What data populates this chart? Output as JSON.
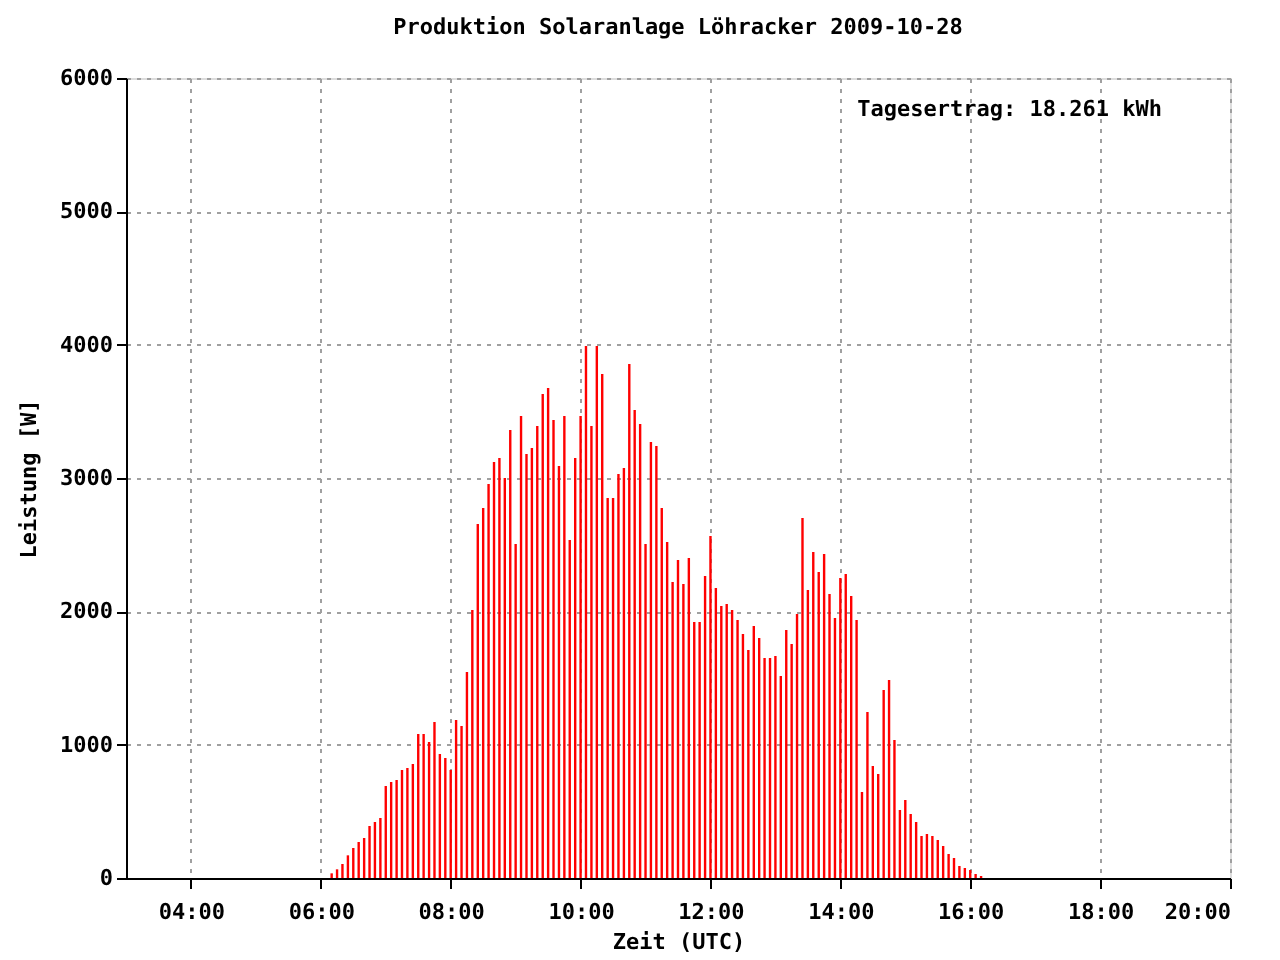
{
  "chart_data": {
    "type": "bar",
    "title": "Produktion Solaranlage Löhracker 2009-10-28",
    "xlabel": "Zeit (UTC)",
    "ylabel": "Leistung [W]",
    "annotations": [
      "Tagesertrag: 18.261 kWh"
    ],
    "x": [
      6.167,
      6.25,
      6.333,
      6.417,
      6.5,
      6.583,
      6.667,
      6.75,
      6.833,
      6.917,
      7,
      7.083,
      7.167,
      7.25,
      7.333,
      7.417,
      7.5,
      7.583,
      7.667,
      7.75,
      7.833,
      7.917,
      8,
      8.083,
      8.167,
      8.25,
      8.333,
      8.417,
      8.5,
      8.583,
      8.667,
      8.75,
      8.833,
      8.917,
      9,
      9.083,
      9.167,
      9.25,
      9.333,
      9.417,
      9.5,
      9.583,
      9.667,
      9.75,
      9.833,
      9.917,
      10,
      10.083,
      10.167,
      10.25,
      10.333,
      10.417,
      10.5,
      10.583,
      10.667,
      10.75,
      10.833,
      10.917,
      11,
      11.083,
      11.167,
      11.25,
      11.333,
      11.417,
      11.5,
      11.583,
      11.667,
      11.75,
      11.833,
      11.917,
      12,
      12.083,
      12.167,
      12.25,
      12.333,
      12.417,
      12.5,
      12.583,
      12.667,
      12.75,
      12.833,
      12.917,
      13,
      13.083,
      13.167,
      13.25,
      13.333,
      13.417,
      13.5,
      13.583,
      13.667,
      13.75,
      13.833,
      13.917,
      14,
      14.083,
      14.167,
      14.25,
      14.333,
      14.417,
      14.5,
      14.583,
      14.667,
      14.75,
      14.833,
      14.917,
      15,
      15.083,
      15.167,
      15.25,
      15.333,
      15.417,
      15.5,
      15.583,
      15.667,
      15.75,
      15.833,
      15.917,
      16,
      16.083,
      16.167
    ],
    "series": [
      {
        "color": "#ff0000",
        "values": [
          35,
          65,
          105,
          170,
          225,
          270,
          300,
          390,
          420,
          450,
          690,
          720,
          735,
          810,
          825,
          855,
          1080,
          1080,
          1020,
          1170,
          930,
          900,
          810,
          1185,
          1140,
          1545,
          2010,
          2655,
          2775,
          2955,
          3120,
          3150,
          3000,
          3360,
          2505,
          3465,
          3180,
          3225,
          3390,
          3630,
          3675,
          3435,
          3090,
          3465,
          2535,
          3150,
          3465,
          3990,
          3390,
          3990,
          3780,
          2850,
          2850,
          3030,
          3075,
          3855,
          3510,
          3405,
          2505,
          3270,
          3240,
          2775,
          2520,
          2220,
          2385,
          2205,
          2400,
          1920,
          1920,
          2265,
          2565,
          2175,
          2040,
          2055,
          2010,
          1935,
          1830,
          1710,
          1890,
          1800,
          1650,
          1650,
          1665,
          1515,
          1860,
          1755,
          1980,
          2700,
          2160,
          2445,
          2295,
          2430,
          2130,
          1950,
          2250,
          2280,
          2115,
          1935,
          645,
          1245,
          840,
          780,
          1410,
          1485,
          1035,
          510,
          585,
          480,
          420,
          315,
          330,
          315,
          285,
          240,
          180,
          150,
          90,
          75,
          60,
          30,
          15
        ]
      }
    ],
    "xlim": [
      3,
      20
    ],
    "xticks": [
      {
        "value": 4,
        "label": "04:00"
      },
      {
        "value": 6,
        "label": "06:00"
      },
      {
        "value": 8,
        "label": "08:00"
      },
      {
        "value": 10,
        "label": "10:00"
      },
      {
        "value": 12,
        "label": "12:00"
      },
      {
        "value": 14,
        "label": "14:00"
      },
      {
        "value": 16,
        "label": "16:00"
      },
      {
        "value": 18,
        "label": "18:00"
      },
      {
        "value": 20,
        "label": "20:00"
      }
    ],
    "ylim": [
      0,
      6000
    ],
    "yticks": [
      0,
      1000,
      2000,
      3000,
      4000,
      5000,
      6000
    ],
    "grid": true
  }
}
